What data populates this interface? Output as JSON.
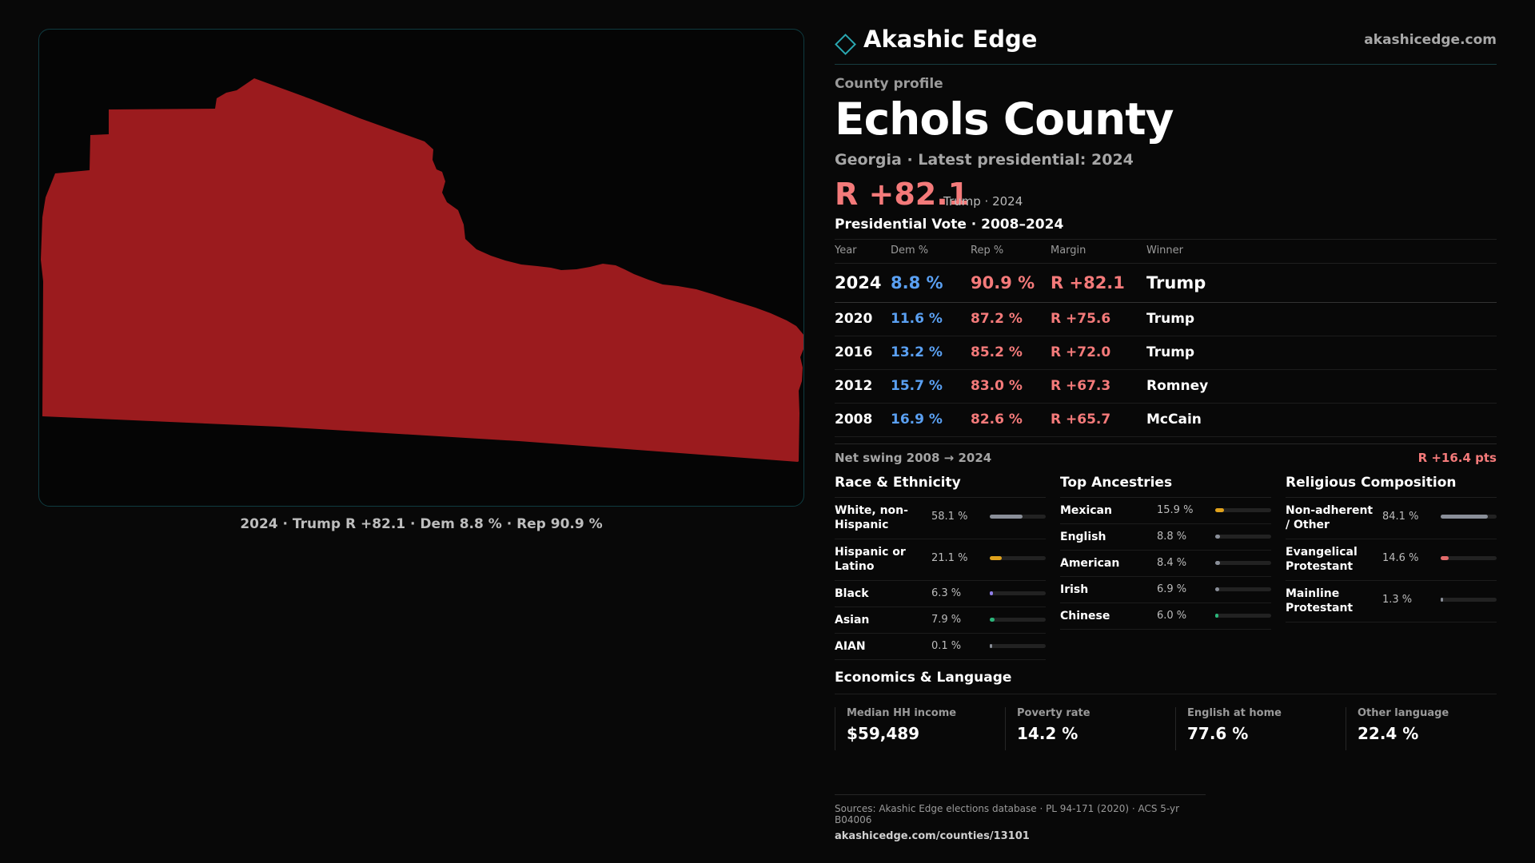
{
  "map": {
    "caption": "2024 · Trump R +82.1 · Dem 8.8 % · Rep 90.9 %",
    "fill_color": "#9b1b1e"
  },
  "header": {
    "brand_icon": "diamond-icon",
    "brand_name": "Akashic Edge",
    "brand_url": "akashicedge.com"
  },
  "profile": {
    "kicker": "County profile",
    "title": "Echols County",
    "subtitle": "Georgia · Latest presidential: 2024",
    "margin": "R +82.1",
    "margin_note": "Trump · 2024"
  },
  "votes": {
    "title": "Presidential Vote · 2008–2024",
    "headers": {
      "year": "Year",
      "dem": "Dem %",
      "rep": "Rep %",
      "margin": "Margin",
      "winner": "Winner"
    },
    "rows": [
      {
        "year": "2024",
        "dem": "8.8 %",
        "rep": "90.9 %",
        "margin": "R +82.1",
        "winner": "Trump"
      },
      {
        "year": "2020",
        "dem": "11.6 %",
        "rep": "87.2 %",
        "margin": "R +75.6",
        "winner": "Trump"
      },
      {
        "year": "2016",
        "dem": "13.2 %",
        "rep": "85.2 %",
        "margin": "R +72.0",
        "winner": "Trump"
      },
      {
        "year": "2012",
        "dem": "15.7 %",
        "rep": "83.0 %",
        "margin": "R +67.3",
        "winner": "Romney"
      },
      {
        "year": "2008",
        "dem": "16.9 %",
        "rep": "82.6 %",
        "margin": "R +65.7",
        "winner": "McCain"
      }
    ],
    "swing_label": "Net swing 2008 → 2024",
    "swing_value": "R +16.4 pts"
  },
  "race": {
    "title": "Race & Ethnicity",
    "items": [
      {
        "label": "White, non-Hispanic",
        "value": "58.1 %",
        "pct": 58.1,
        "color": "#8a8f99"
      },
      {
        "label": "Hispanic or Latino",
        "value": "21.1 %",
        "pct": 21.1,
        "color": "#e0a21c"
      },
      {
        "label": "Black",
        "value": "6.3 %",
        "pct": 6.3,
        "color": "#8f7ee8"
      },
      {
        "label": "Asian",
        "value": "7.9 %",
        "pct": 7.9,
        "color": "#2bb57a"
      },
      {
        "label": "AIAN",
        "value": "0.1 %",
        "pct": 0.1,
        "color": "#8a8f99"
      }
    ]
  },
  "ancestries": {
    "title": "Top Ancestries",
    "items": [
      {
        "label": "Mexican",
        "value": "15.9 %",
        "pct": 15.9,
        "color": "#e0a21c"
      },
      {
        "label": "English",
        "value": "8.8 %",
        "pct": 8.8,
        "color": "#8a8f99"
      },
      {
        "label": "American",
        "value": "8.4 %",
        "pct": 8.4,
        "color": "#8a8f99"
      },
      {
        "label": "Irish",
        "value": "6.9 %",
        "pct": 6.9,
        "color": "#8a8f99"
      },
      {
        "label": "Chinese",
        "value": "6.0 %",
        "pct": 6.0,
        "color": "#2bb57a"
      }
    ]
  },
  "religion": {
    "title": "Religious Composition",
    "items": [
      {
        "label": "Non-adherent / Other",
        "value": "84.1 %",
        "pct": 84.1,
        "color": "#8a8f99"
      },
      {
        "label": "Evangelical Protestant",
        "value": "14.6 %",
        "pct": 14.6,
        "color": "#e26a6a"
      },
      {
        "label": "Mainline Protestant",
        "value": "1.3 %",
        "pct": 1.3,
        "color": "#8a8f99"
      }
    ]
  },
  "economics": {
    "title": "Economics & Language",
    "items": [
      {
        "label": "Median HH income",
        "value": "$59,489"
      },
      {
        "label": "Poverty rate",
        "value": "14.2 %"
      },
      {
        "label": "English at home",
        "value": "77.6 %"
      },
      {
        "label": "Other language",
        "value": "22.4 %"
      }
    ]
  },
  "footer": {
    "sources": "Sources: Akashic Edge elections database · PL 94-171 (2020) · ACS 5-yr B04006",
    "url": "akashicedge.com/counties/13101"
  }
}
